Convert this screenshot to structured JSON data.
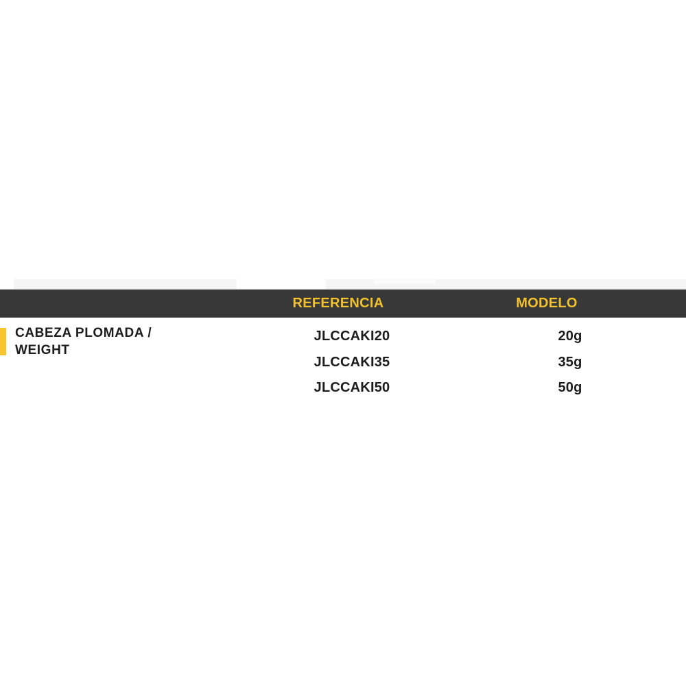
{
  "table": {
    "headers": {
      "referencia": "REFERENCIA",
      "modelo": "MODELO"
    },
    "row_label": {
      "line1": "CABEZA PLOMADA /",
      "line2": "WEIGHT"
    },
    "rows": [
      {
        "referencia": "JLCCAKI20",
        "modelo": "20g"
      },
      {
        "referencia": "JLCCAKI35",
        "modelo": "35g"
      },
      {
        "referencia": "JLCCAKI50",
        "modelo": "50g"
      }
    ],
    "colors": {
      "header_bg": "#383838",
      "header_text": "#F2C12E",
      "accent": "#F7C52D",
      "body_text": "#1C1C1C"
    }
  }
}
